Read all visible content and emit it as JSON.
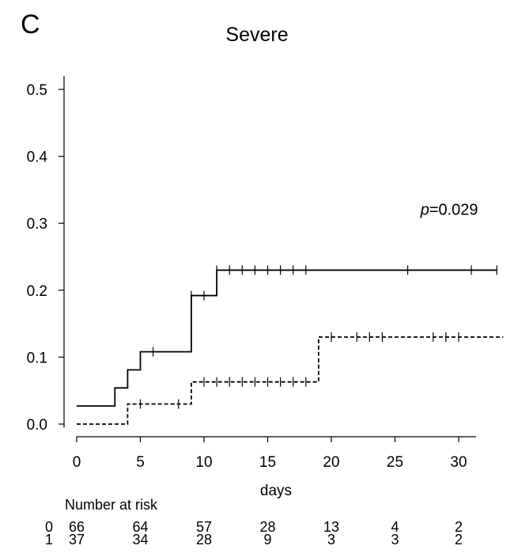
{
  "panel_label": "C",
  "chart_data": {
    "type": "line",
    "subtype": "step-survival",
    "title": "Severe",
    "xlabel": "days",
    "ylabel": "",
    "xlim": [
      -1,
      33
    ],
    "ylim": [
      -0.01,
      0.52
    ],
    "xticks": [
      0,
      5,
      10,
      15,
      20,
      25,
      30
    ],
    "yticks": [
      0.0,
      0.1,
      0.2,
      0.3,
      0.4,
      0.5
    ],
    "ytick_labels": [
      "0.0",
      "0.1",
      "0.2",
      "0.3",
      "0.4",
      "0.5"
    ],
    "grid": false,
    "annotation": {
      "italic": "p",
      "rest": "=0.029",
      "x": 27,
      "y": 0.32
    },
    "series": [
      {
        "style": "solid",
        "steps": [
          [
            0,
            0.027
          ],
          [
            3,
            0.054
          ],
          [
            4,
            0.081
          ],
          [
            5,
            0.108
          ],
          [
            9,
            0.192
          ],
          [
            11,
            0.23
          ],
          [
            33,
            0.23
          ]
        ],
        "censor_x": [
          6,
          9,
          10,
          11,
          12,
          13,
          14,
          15,
          16,
          17,
          18,
          26,
          31,
          33
        ]
      },
      {
        "style": "dashed",
        "steps": [
          [
            0,
            0.0
          ],
          [
            4,
            0.03
          ],
          [
            9,
            0.063
          ],
          [
            19,
            0.13
          ],
          [
            33.5,
            0.13
          ]
        ],
        "censor_x": [
          5,
          8,
          10,
          11,
          12,
          13,
          14,
          15,
          16,
          17,
          18,
          20,
          22,
          23,
          24,
          28,
          29,
          30
        ]
      }
    ]
  },
  "risk_table": {
    "title": "Number at risk",
    "times": [
      0,
      5,
      10,
      15,
      20,
      25,
      30
    ],
    "rows": [
      {
        "label": "0",
        "values": [
          "66",
          "64",
          "57",
          "28",
          "13",
          "4",
          "2"
        ]
      },
      {
        "label": "1",
        "values": [
          "37",
          "34",
          "28",
          "9",
          "3",
          "3",
          "2"
        ]
      }
    ]
  }
}
